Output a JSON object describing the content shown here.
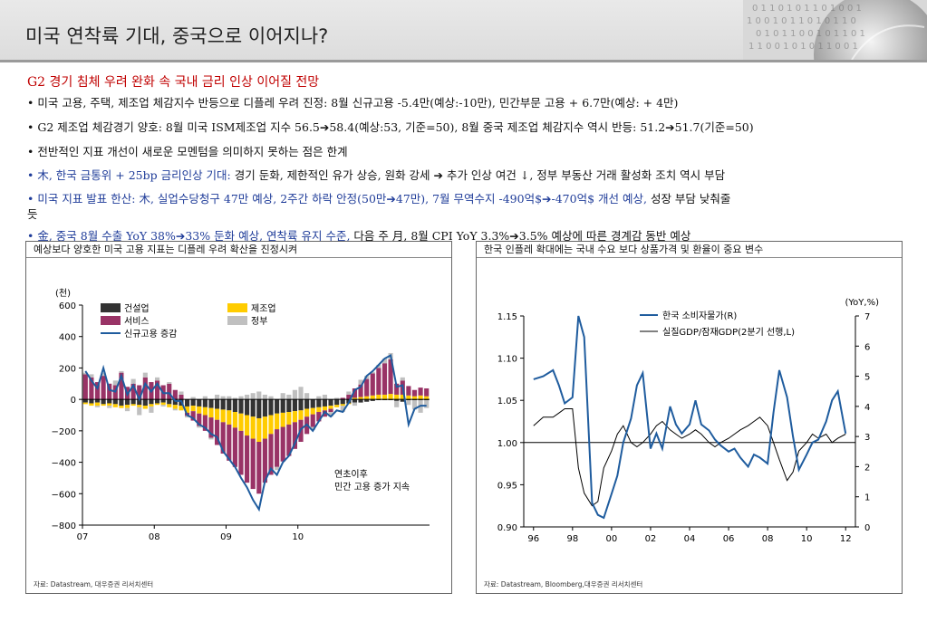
{
  "header": {
    "title": "미국 연착륙 기대, 중국으로 이어지나?"
  },
  "subtitle": "G2 경기 침체 우려 완화 속 국내 금리 인상 이어질 전망",
  "bullets": {
    "b1": "미국 고용, 주택, 제조업 체감지수 반등으로 디플레 우려 진정: 8월 신규고용 -5.4만(예상:-10만), 민간부문 고용 + 6.7만(예상: + 4만)",
    "b2": "G2 제조업 체감경기 양호: 8월 미국 ISM제조업 지수 56.5➔58.4(예상:53, 기준=50), 8월 중국 제조업 체감지수 역시 반등: 51.2➔51.7(기준=50)",
    "b3": "전반적인 지표 개선이 새로운 모멘텀을 의미하지 못하는 점은 한계",
    "b4_blue": "木, 한국 금통위 + 25bp 금리인상 기대:",
    "b4_rest": " 경기 둔화, 제한적인 유가 상승, 원화 강세 ➔ 추가 인상 여건 ↓, 정부 부동산 거래 활성화 조치 역시 부담",
    "b5_blue": "미국 지표 발표 한산: 木, 실업수당청구 47만 예상, 2주간 하락 안정(50만➔47만), 7월 무역수지 -490억$➔-470억$ 개선 예상,",
    "b5_rest": " 성장 부담 낮춰줄",
    "b5_wrap": "듯",
    "b6_blue": "金, 중국 8월 수출 YoY 38%➔33% 둔화 예상, 연착륙 유지 수준,",
    "b6_rest": " 다음 주 月, 8월 CPI YoY 3.3%➔3.5% 예상에 따른 경계감 동반 예상"
  },
  "left_panel": {
    "title": "예상보다 양호한 미국 고용 지표는 디플레 우려 확산을 진정시켜",
    "source": "자료: Datastream, 대우증권 리서치센터"
  },
  "right_panel": {
    "title": "한국 인플레 확대에는 국내 수요 보다 상품가격 및 환율이 중요 변수",
    "source": "자료: Datastream, Bloomberg,대우증권 리서치센터"
  },
  "colors": {
    "accent_red": "#c00000",
    "accent_blue": "#1f3c99",
    "construction": "#333333",
    "manufacturing": "#ffcc00",
    "services": "#993366",
    "government": "#c0c0c0",
    "line_blue": "#1f5c9e"
  },
  "chart_data": [
    {
      "type": "bar",
      "stacked": true,
      "unit_label": "(천)",
      "ylim": [
        -800,
        600
      ],
      "yticks": [
        "600",
        "400",
        "200",
        "0",
        "−200",
        "−400",
        "−600",
        "−800"
      ],
      "xticks": [
        "07",
        "08",
        "09",
        "10"
      ],
      "legend": [
        "건설업",
        "제조업",
        "서비스",
        "정부",
        "신규고용 증감"
      ],
      "annotation": [
        "연초이후",
        "민간 고용 증가 지속"
      ],
      "series": [
        {
          "name": "건설업",
          "values": [
            -20,
            -25,
            -20,
            -30,
            -25,
            -30,
            -40,
            -35,
            -30,
            -35,
            -40,
            -30,
            -25,
            -20,
            -30,
            -35,
            -40,
            -45,
            -40,
            -45,
            -50,
            -55,
            -60,
            -65,
            -70,
            -80,
            -90,
            -100,
            -110,
            -120,
            -110,
            -100,
            -90,
            -85,
            -80,
            -75,
            -70,
            -60,
            -55,
            -50,
            -45,
            -40,
            -35,
            -30,
            -25,
            -20,
            -20,
            -15,
            -10,
            -5,
            -5,
            -5,
            -10,
            -15,
            -5,
            -5,
            -5,
            -5
          ]
        },
        {
          "name": "제조업",
          "values": [
            -10,
            -15,
            -20,
            -10,
            -15,
            -20,
            -15,
            -20,
            -10,
            -15,
            -20,
            -15,
            -10,
            -15,
            -20,
            -25,
            -30,
            -40,
            -35,
            -45,
            -50,
            -60,
            -70,
            -80,
            -90,
            -100,
            -110,
            -130,
            -140,
            -150,
            -140,
            -120,
            -100,
            -90,
            -80,
            -70,
            -60,
            -50,
            -40,
            -30,
            -25,
            -20,
            -15,
            -10,
            -5,
            10,
            15,
            20,
            25,
            30,
            30,
            35,
            30,
            30,
            25,
            20,
            25,
            20
          ]
        },
        {
          "name": "서비스",
          "values": [
            160,
            140,
            110,
            150,
            100,
            90,
            170,
            80,
            100,
            90,
            140,
            110,
            120,
            90,
            100,
            60,
            30,
            -20,
            -60,
            -80,
            -100,
            -130,
            -160,
            -200,
            -230,
            -250,
            -280,
            -300,
            -320,
            -330,
            -280,
            -260,
            -240,
            -220,
            -200,
            -170,
            -140,
            -110,
            -80,
            -60,
            -40,
            -20,
            0,
            10,
            30,
            60,
            80,
            110,
            140,
            170,
            200,
            220,
            70,
            90,
            60,
            40,
            50,
            50
          ]
        },
        {
          "name": "정부",
          "values": [
            10,
            20,
            -10,
            20,
            -15,
            30,
            10,
            -20,
            30,
            -50,
            30,
            -40,
            20,
            -10,
            10,
            -10,
            20,
            -10,
            15,
            -10,
            20,
            -10,
            30,
            20,
            20,
            10,
            20,
            30,
            40,
            50,
            30,
            20,
            -20,
            40,
            30,
            60,
            80,
            40,
            -20,
            20,
            30,
            -30,
            10,
            -40,
            20,
            -20,
            30,
            20,
            10,
            20,
            30,
            40,
            -40,
            20,
            -30,
            -60,
            -80,
            -50
          ]
        }
      ],
      "line": {
        "name": "신규고용 증감",
        "values": [
          180,
          120,
          70,
          200,
          60,
          50,
          150,
          30,
          90,
          0,
          100,
          50,
          100,
          40,
          40,
          -10,
          -10,
          -100,
          -120,
          -160,
          -180,
          -220,
          -240,
          -330,
          -380,
          -430,
          -500,
          -560,
          -640,
          -700,
          -520,
          -440,
          -480,
          -400,
          -360,
          -280,
          -190,
          -160,
          -200,
          -140,
          -80,
          -110,
          -70,
          -80,
          -20,
          60,
          80,
          150,
          180,
          220,
          260,
          280,
          80,
          90,
          -160,
          -60,
          -40,
          -40
        ]
      }
    },
    {
      "type": "line",
      "xticks": [
        "96",
        "98",
        "00",
        "02",
        "04",
        "06",
        "08",
        "10",
        "12"
      ],
      "left_axis": {
        "ticks": [
          "1.15",
          "1.10",
          "1.05",
          "1.00",
          "0.95",
          "0.90"
        ],
        "ylim": [
          0.9,
          1.15
        ]
      },
      "right_axis": {
        "label": "(YoY,%)",
        "ticks": [
          "7",
          "6",
          "5",
          "4",
          "3",
          "2",
          "1",
          "0"
        ],
        "ylim": [
          0,
          7
        ]
      },
      "reference_line": 1.0,
      "series": [
        {
          "name": "한국 소비자물가(R)",
          "axis": "right",
          "x": [
            1996,
            1996.5,
            1997,
            1997.3,
            1997.6,
            1998,
            1998.3,
            1998.6,
            1999,
            1999.3,
            1999.6,
            2000,
            2000.3,
            2000.6,
            2001,
            2001.3,
            2001.6,
            2002,
            2002.3,
            2002.6,
            2003,
            2003.3,
            2003.6,
            2004,
            2004.3,
            2004.6,
            2005,
            2005.3,
            2005.6,
            2006,
            2006.3,
            2006.6,
            2007,
            2007.3,
            2007.6,
            2008,
            2008.3,
            2008.6,
            2009,
            2009.3,
            2009.6,
            2010,
            2010.3,
            2010.6,
            2011,
            2011.3,
            2011.6,
            2012
          ],
          "y": [
            4.9,
            5.0,
            5.2,
            4.7,
            4.1,
            4.3,
            7.0,
            6.3,
            0.8,
            0.4,
            0.3,
            1.1,
            1.7,
            2.8,
            3.6,
            4.7,
            5.1,
            2.6,
            3.1,
            2.6,
            4.0,
            3.4,
            3.1,
            3.4,
            4.2,
            3.4,
            3.2,
            2.9,
            2.7,
            2.5,
            2.6,
            2.3,
            2.0,
            2.4,
            2.3,
            2.1,
            3.8,
            5.2,
            4.3,
            3.0,
            1.9,
            2.4,
            2.8,
            2.9,
            3.5,
            4.2,
            4.5,
            3.1
          ]
        },
        {
          "name": "실질GDP/잠재GDP(2분기 선행,L)",
          "axis": "left",
          "x": [
            1996,
            1996.5,
            1997,
            1997.3,
            1997.6,
            1998,
            1998.3,
            1998.6,
            1999,
            1999.3,
            1999.6,
            2000,
            2000.3,
            2000.6,
            2001,
            2001.3,
            2001.6,
            2002,
            2002.3,
            2002.6,
            2003,
            2003.3,
            2003.6,
            2004,
            2004.3,
            2004.6,
            2005,
            2005.3,
            2005.6,
            2006,
            2006.3,
            2006.6,
            2007,
            2007.3,
            2007.6,
            2008,
            2008.3,
            2008.6,
            2009,
            2009.3,
            2009.6,
            2010,
            2010.3,
            2010.6,
            2011,
            2011.3,
            2011.6,
            2012
          ],
          "y": [
            1.02,
            1.03,
            1.03,
            1.035,
            1.04,
            1.04,
            0.97,
            0.94,
            0.925,
            0.93,
            0.97,
            0.99,
            1.01,
            1.02,
            1.0,
            0.995,
            1.0,
            1.01,
            1.02,
            1.025,
            1.015,
            1.01,
            1.005,
            1.01,
            1.015,
            1.01,
            1.0,
            0.995,
            1.0,
            1.005,
            1.01,
            1.015,
            1.02,
            1.025,
            1.03,
            1.02,
            1.0,
            0.98,
            0.955,
            0.965,
            0.99,
            1.0,
            1.01,
            1.005,
            1.01,
            1.0,
            1.005,
            1.01
          ]
        }
      ]
    }
  ]
}
